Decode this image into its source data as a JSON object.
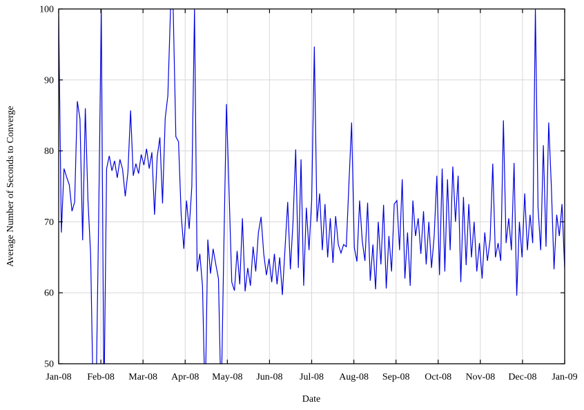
{
  "chart_data": {
    "type": "line",
    "title": "",
    "xlabel": "Date",
    "ylabel": "Average Number of Seconds to Converge",
    "ylim": [
      50,
      100
    ],
    "yticks": [
      50,
      60,
      70,
      80,
      90,
      100
    ],
    "x_tick_labels": [
      "Jan-08",
      "Feb-08",
      "Mar-08",
      "Apr-08",
      "May-08",
      "Jun-08",
      "Jul-08",
      "Aug-08",
      "Sep-08",
      "Oct-08",
      "Nov-08",
      "Dec-08",
      "Jan-09"
    ],
    "grid": true,
    "legend_position": "none",
    "background_color": "#ffffff",
    "grid_color": "#d8d8d8",
    "border_color": "#000000",
    "series": [
      {
        "name": "average-seconds-to-converge",
        "color": "#0000dd",
        "note": "values below ylim (44) and at 100 are clipped at plot border as in source",
        "values": [
          99,
          68.5,
          77.5,
          76.3,
          75.2,
          71.5,
          72.8,
          87,
          84.5,
          67.4,
          86,
          73,
          65.4,
          44,
          44,
          70,
          100,
          44,
          77.5,
          79.3,
          77.2,
          78.6,
          76.2,
          78.8,
          77.4,
          73.6,
          77,
          85.7,
          76.5,
          78.2,
          76.8,
          79.5,
          78,
          80.3,
          77.5,
          79.8,
          71,
          79.2,
          81.9,
          72.6,
          84.6,
          87.8,
          100,
          100,
          82,
          81.3,
          71,
          66.2,
          73,
          69,
          75,
          100,
          63,
          65.5,
          61,
          44,
          67.5,
          62.7,
          66.2,
          64,
          62,
          44,
          66,
          86.6,
          74,
          61.5,
          60.3,
          65.9,
          61.2,
          70.5,
          60.2,
          63.5,
          61,
          66.5,
          63,
          68.5,
          70.7,
          65.5,
          62.5,
          64.8,
          61.5,
          65.5,
          61.2,
          65,
          59.7,
          66.3,
          72.8,
          63.3,
          70,
          80.2,
          63.5,
          78.8,
          61,
          72,
          66,
          73,
          94.7,
          70,
          74,
          66,
          72.5,
          65,
          70.5,
          64.2,
          70.8,
          66.8,
          65.6,
          66.8,
          66.5,
          75.5,
          84,
          66.4,
          64.4,
          73,
          67.3,
          64.5,
          72.7,
          61.7,
          66.8,
          60.5,
          70,
          64,
          72.4,
          60.6,
          68,
          63,
          72.5,
          73,
          66,
          76,
          62,
          68.5,
          61,
          73,
          68,
          70.5,
          65.5,
          71.5,
          64,
          70,
          63.5,
          68,
          76.5,
          62.5,
          77.5,
          63,
          76,
          66,
          77.8,
          70,
          76.5,
          61.5,
          73.5,
          63.9,
          72.5,
          65,
          70,
          63,
          67,
          62,
          68.5,
          64.5,
          67.5,
          78.2,
          65,
          67,
          64.5,
          84.3,
          67,
          70.5,
          66,
          78.3,
          59.6,
          70,
          65,
          74,
          66,
          71,
          67,
          100,
          72,
          66,
          80.8,
          66.5,
          84,
          75,
          63.3,
          71,
          68,
          72.5,
          63.4
        ]
      }
    ]
  }
}
